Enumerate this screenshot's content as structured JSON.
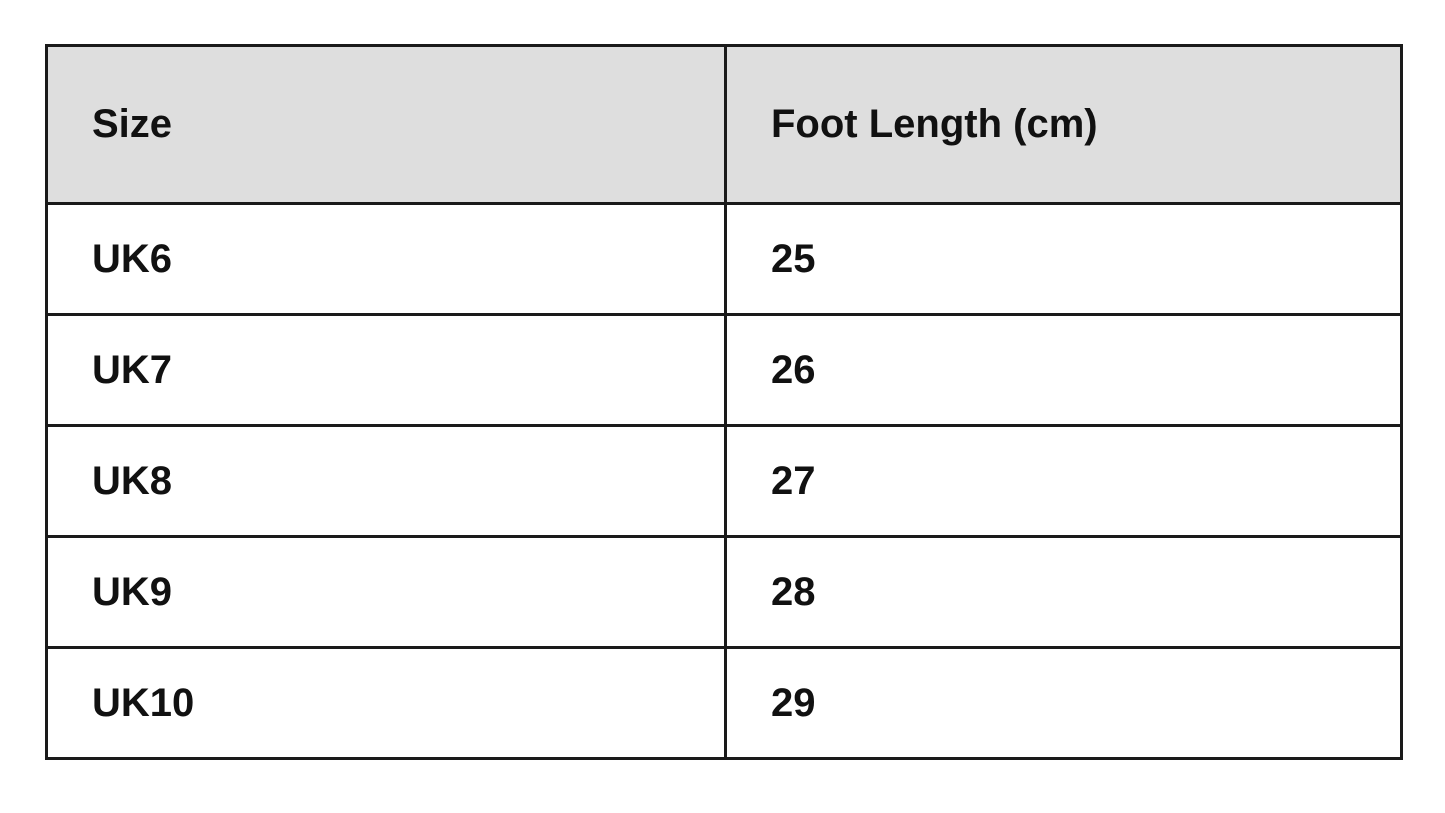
{
  "table": {
    "headers": [
      "Size",
      "Foot Length (cm)"
    ],
    "rows": [
      [
        "UK6",
        "25"
      ],
      [
        "UK7",
        "26"
      ],
      [
        "UK8",
        "27"
      ],
      [
        "UK9",
        "28"
      ],
      [
        "UK10",
        "29"
      ]
    ]
  },
  "colors": {
    "header_bg": "#dedede",
    "border": "#1a1a1a"
  }
}
